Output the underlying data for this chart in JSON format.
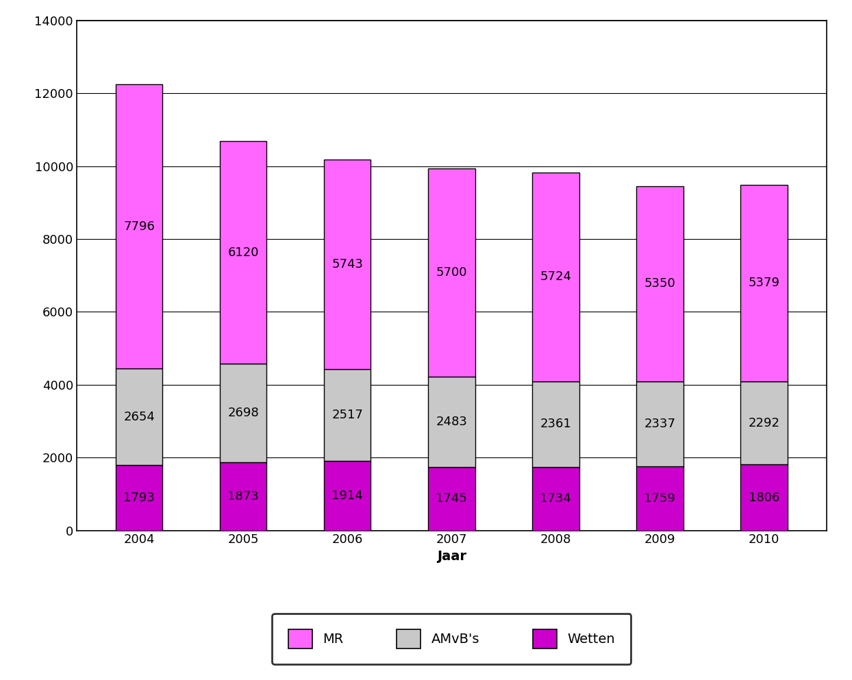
{
  "years": [
    2004,
    2005,
    2006,
    2007,
    2008,
    2009,
    2010
  ],
  "wetten": [
    1793,
    1873,
    1914,
    1745,
    1734,
    1759,
    1806
  ],
  "amvb": [
    2654,
    2698,
    2517,
    2483,
    2361,
    2337,
    2292
  ],
  "mr": [
    7796,
    6120,
    5743,
    5700,
    5724,
    5350,
    5379
  ],
  "color_wetten": "#CC00CC",
  "color_amvb": "#C8C8C8",
  "color_mr": "#FF66FF",
  "xlabel": "Jaar",
  "ylim": [
    0,
    14000
  ],
  "yticks": [
    0,
    2000,
    4000,
    6000,
    8000,
    10000,
    12000,
    14000
  ],
  "legend_labels": [
    "MR",
    "AMvB's",
    "Wetten"
  ],
  "bar_width": 0.45,
  "background_color": "#FFFFFF",
  "grid_color": "#000000",
  "text_color": "#000000",
  "label_fontsize": 14,
  "tick_fontsize": 13,
  "legend_fontsize": 14,
  "value_fontsize": 13
}
